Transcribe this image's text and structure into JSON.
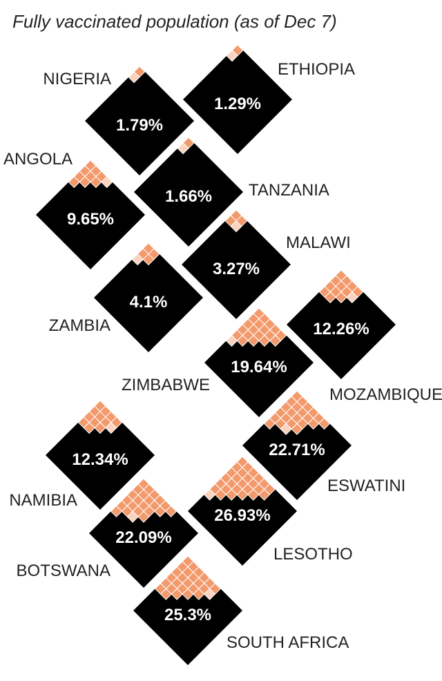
{
  "chart_data": {
    "type": "waffle-diamond",
    "title": "Fully vaccinated population (as of Dec 7)",
    "colors": {
      "background": "#000000",
      "filled": "#f39a6c",
      "partial": "#f9d3bd",
      "grid": "#ffffff",
      "value_text": "#ffffff",
      "label_text": "#222222"
    },
    "unit": "%",
    "countries": [
      {
        "name": "NIGERIA",
        "label": "1.79%",
        "value": 1.79
      },
      {
        "name": "ETHIOPIA",
        "label": "1.29%",
        "value": 1.29
      },
      {
        "name": "ANGOLA",
        "label": "9.65%",
        "value": 9.65
      },
      {
        "name": "TANZANIA",
        "label": "1.66%",
        "value": 1.66
      },
      {
        "name": "MALAWI",
        "label": "3.27%",
        "value": 3.27
      },
      {
        "name": "ZAMBIA",
        "label": "4.1%",
        "value": 4.1
      },
      {
        "name": "MOZAMBIQUE",
        "label": "12.26%",
        "value": 12.26
      },
      {
        "name": "ZIMBABWE",
        "label": "19.64%",
        "value": 19.64
      },
      {
        "name": "ESWATINI",
        "label": "22.71%",
        "value": 22.71
      },
      {
        "name": "NAMIBIA",
        "label": "12.34%",
        "value": 12.34
      },
      {
        "name": "LESOTHO",
        "label": "26.93%",
        "value": 26.93
      },
      {
        "name": "BOTSWANA",
        "label": "22.09%",
        "value": 22.09
      },
      {
        "name": "SOUTH AFRICA",
        "label": "25.3%",
        "value": 25.3
      }
    ]
  }
}
